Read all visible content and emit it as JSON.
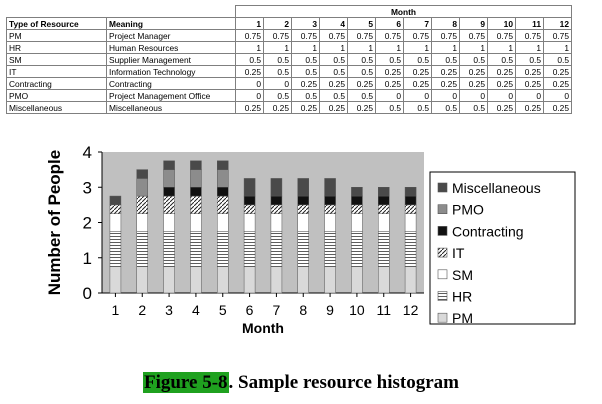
{
  "table": {
    "header_type": "Type of Resource",
    "header_meaning": "Meaning",
    "header_month": "Month",
    "months": [
      "1",
      "2",
      "3",
      "4",
      "5",
      "6",
      "7",
      "8",
      "9",
      "10",
      "11",
      "12"
    ],
    "rows": [
      {
        "type": "PM",
        "meaning": "Project Manager",
        "values": [
          "0.75",
          "0.75",
          "0.75",
          "0.75",
          "0.75",
          "0.75",
          "0.75",
          "0.75",
          "0.75",
          "0.75",
          "0.75",
          "0.75"
        ]
      },
      {
        "type": "HR",
        "meaning": "Human Resources",
        "values": [
          "1",
          "1",
          "1",
          "1",
          "1",
          "1",
          "1",
          "1",
          "1",
          "1",
          "1",
          "1"
        ]
      },
      {
        "type": "SM",
        "meaning": "Supplier Management",
        "values": [
          "0.5",
          "0.5",
          "0.5",
          "0.5",
          "0.5",
          "0.5",
          "0.5",
          "0.5",
          "0.5",
          "0.5",
          "0.5",
          "0.5"
        ]
      },
      {
        "type": "IT",
        "meaning": "Information Technology",
        "values": [
          "0.25",
          "0.5",
          "0.5",
          "0.5",
          "0.5",
          "0.25",
          "0.25",
          "0.25",
          "0.25",
          "0.25",
          "0.25",
          "0.25"
        ]
      },
      {
        "type": "Contracting",
        "meaning": "Contracting",
        "values": [
          "0",
          "0",
          "0.25",
          "0.25",
          "0.25",
          "0.25",
          "0.25",
          "0.25",
          "0.25",
          "0.25",
          "0.25",
          "0.25"
        ]
      },
      {
        "type": "PMO",
        "meaning": "Project Management Office",
        "values": [
          "0",
          "0.5",
          "0.5",
          "0.5",
          "0.5",
          "0",
          "0",
          "0",
          "0",
          "0",
          "0",
          "0"
        ]
      },
      {
        "type": "Miscellaneous",
        "meaning": "Miscellaneous",
        "values": [
          "0.25",
          "0.25",
          "0.25",
          "0.25",
          "0.25",
          "0.5",
          "0.5",
          "0.5",
          "0.5",
          "0.25",
          "0.25",
          "0.25"
        ]
      }
    ]
  },
  "chart_data": {
    "type": "bar",
    "stacked": true,
    "title": "",
    "xlabel": "Month",
    "ylabel": "Number of People",
    "ylim": [
      0,
      4
    ],
    "yticks": [
      0,
      1,
      2,
      3,
      4
    ],
    "categories": [
      "1",
      "2",
      "3",
      "4",
      "5",
      "6",
      "7",
      "8",
      "9",
      "10",
      "11",
      "12"
    ],
    "grid": false,
    "legend_position": "right",
    "series": [
      {
        "name": "PM",
        "values": [
          0.75,
          0.75,
          0.75,
          0.75,
          0.75,
          0.75,
          0.75,
          0.75,
          0.75,
          0.75,
          0.75,
          0.75
        ],
        "color": "#d9d9d9",
        "pattern": "solid-light"
      },
      {
        "name": "HR",
        "values": [
          1,
          1,
          1,
          1,
          1,
          1,
          1,
          1,
          1,
          1,
          1,
          1
        ],
        "color": "#ffffff",
        "pattern": "horizontal-lines"
      },
      {
        "name": "SM",
        "values": [
          0.5,
          0.5,
          0.5,
          0.5,
          0.5,
          0.5,
          0.5,
          0.5,
          0.5,
          0.5,
          0.5,
          0.5
        ],
        "color": "#ffffff",
        "pattern": "solid-white"
      },
      {
        "name": "IT",
        "values": [
          0.25,
          0.5,
          0.5,
          0.5,
          0.5,
          0.25,
          0.25,
          0.25,
          0.25,
          0.25,
          0.25,
          0.25
        ],
        "color": "#ffffff",
        "pattern": "diagonal-lines"
      },
      {
        "name": "Contracting",
        "values": [
          0,
          0,
          0.25,
          0.25,
          0.25,
          0.25,
          0.25,
          0.25,
          0.25,
          0.25,
          0.25,
          0.25
        ],
        "color": "#111111",
        "pattern": "solid-black"
      },
      {
        "name": "PMO",
        "values": [
          0,
          0.5,
          0.5,
          0.5,
          0.5,
          0,
          0,
          0,
          0,
          0,
          0,
          0
        ],
        "color": "#8c8c8c",
        "pattern": "solid-gray"
      },
      {
        "name": "Miscellaneous",
        "values": [
          0.25,
          0.25,
          0.25,
          0.25,
          0.25,
          0.5,
          0.5,
          0.5,
          0.5,
          0.25,
          0.25,
          0.25
        ],
        "color": "#4a4a4a",
        "pattern": "solid-dark"
      }
    ],
    "legend_order": [
      "Miscellaneous",
      "PMO",
      "Contracting",
      "IT",
      "SM",
      "HR",
      "PM"
    ],
    "plot_background": "#c0c0c0"
  },
  "caption": {
    "label": "Figure 5-8",
    "text": ". Sample resource histogram"
  }
}
